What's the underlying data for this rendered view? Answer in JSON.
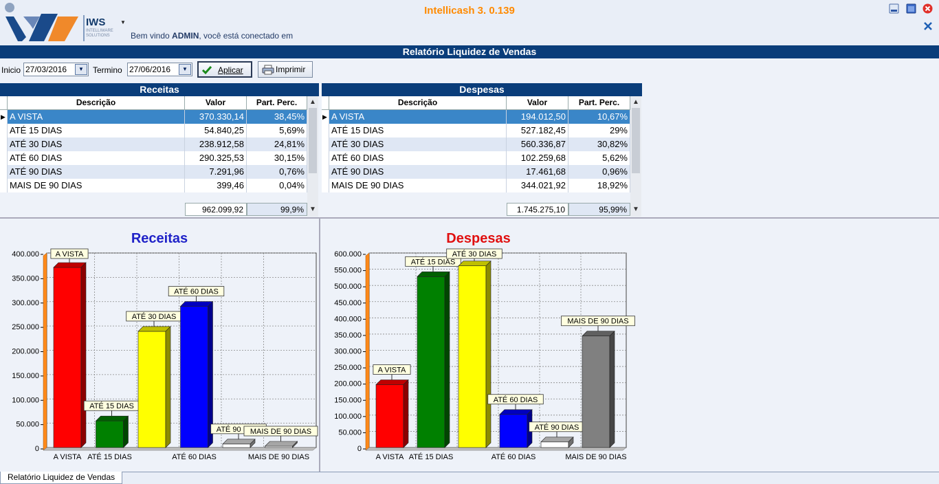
{
  "app": {
    "title": "Intellicash 3. 0.139",
    "logo_text": "IWS",
    "logo_sub": "INTELLIWARE SOLUTIONS",
    "welcome_prefix": "Bem vindo ",
    "welcome_user": "ADMIN",
    "welcome_suffix": ", você está conectado em"
  },
  "report": {
    "title": "Relatório Liquidez de Vendas"
  },
  "filter": {
    "inicio_label": "Inicio",
    "inicio_value": "27/03/2016",
    "termino_label": "Termino",
    "termino_value": "27/06/2016",
    "apply_label": "Aplicar",
    "print_label": "Imprimir"
  },
  "columns": {
    "descricao": "Descrição",
    "valor": "Valor",
    "part": "Part. Perc."
  },
  "receitas": {
    "title": "Receitas",
    "rows": [
      {
        "desc": "A VISTA",
        "valor": "370.330,14",
        "part": "38,45%"
      },
      {
        "desc": "ATÉ 15 DIAS",
        "valor": "54.840,25",
        "part": "5,69%"
      },
      {
        "desc": "ATÉ 30 DIAS",
        "valor": "238.912,58",
        "part": "24,81%"
      },
      {
        "desc": "ATÉ 60 DIAS",
        "valor": "290.325,53",
        "part": "30,15%"
      },
      {
        "desc": "ATÉ 90 DIAS",
        "valor": "7.291,96",
        "part": "0,76%"
      },
      {
        "desc": "MAIS DE 90 DIAS",
        "valor": "399,46",
        "part": "0,04%"
      }
    ],
    "total_valor": "962.099,92",
    "total_part": "99,9%"
  },
  "despesas": {
    "title": "Despesas",
    "rows": [
      {
        "desc": "A VISTA",
        "valor": "194.012,50",
        "part": "10,67%"
      },
      {
        "desc": "ATÉ 15 DIAS",
        "valor": "527.182,45",
        "part": "29%"
      },
      {
        "desc": "ATÉ 30 DIAS",
        "valor": "560.336,87",
        "part": "30,82%"
      },
      {
        "desc": "ATÉ 60 DIAS",
        "valor": "102.259,68",
        "part": "5,62%"
      },
      {
        "desc": "ATÉ 90 DIAS",
        "valor": "17.461,68",
        "part": "0,96%"
      },
      {
        "desc": "MAIS DE 90 DIAS",
        "valor": "344.021,92",
        "part": "18,92%"
      }
    ],
    "total_valor": "1.745.275,10",
    "total_part": "95,99%"
  },
  "chart_data": [
    {
      "type": "bar",
      "title": "Receitas",
      "title_color": "#1f22c8",
      "categories": [
        "A VISTA",
        "ATÉ 15 DIAS",
        "ATÉ 30 DIAS",
        "ATÉ 60 DIAS",
        "ATÉ 90 DIAS",
        "MAIS DE 90 DIAS"
      ],
      "x_tick_labels": [
        "A VISTA",
        "ATÉ 15 DIAS",
        "",
        "ATÉ 60 DIAS",
        "",
        "MAIS DE 90 DIAS"
      ],
      "values": [
        370330.14,
        54840.25,
        238912.58,
        290325.53,
        7291.96,
        399.46
      ],
      "colors": [
        "#ff0000",
        "#008000",
        "#ffff00",
        "#0000ff",
        "#ffffff",
        "#ffffff"
      ],
      "ylim": [
        0,
        400000
      ],
      "yticks": [
        0,
        50000,
        100000,
        150000,
        200000,
        250000,
        300000,
        350000,
        400000
      ],
      "ytick_labels": [
        "0",
        "50.000",
        "100.000",
        "150.000",
        "200.000",
        "250.000",
        "300.000",
        "350.000",
        "400.000"
      ],
      "grid": true,
      "xlabel": "",
      "ylabel": ""
    },
    {
      "type": "bar",
      "title": "Despesas",
      "title_color": "#e01010",
      "categories": [
        "A VISTA",
        "ATÉ 15 DIAS",
        "ATÉ 30 DIAS",
        "ATÉ 60 DIAS",
        "ATÉ 90 DIAS",
        "MAIS DE 90 DIAS"
      ],
      "x_tick_labels": [
        "A VISTA",
        "ATÉ 15 DIAS",
        "",
        "ATÉ 60 DIAS",
        "",
        "MAIS DE 90 DIAS"
      ],
      "values": [
        194012.5,
        527182.45,
        560336.87,
        102259.68,
        17461.68,
        344021.92
      ],
      "colors": [
        "#ff0000",
        "#008000",
        "#ffff00",
        "#0000ff",
        "#ffffff",
        "#808080"
      ],
      "ylim": [
        0,
        600000
      ],
      "yticks": [
        0,
        50000,
        100000,
        150000,
        200000,
        250000,
        300000,
        350000,
        400000,
        450000,
        500000,
        550000,
        600000
      ],
      "ytick_labels": [
        "0",
        "50.000",
        "100.000",
        "150.000",
        "200.000",
        "250.000",
        "300.000",
        "350.000",
        "400.000",
        "450.000",
        "500.000",
        "550.000",
        "600.000"
      ],
      "grid": true,
      "xlabel": "",
      "ylabel": ""
    }
  ],
  "status": {
    "tab_label": "Relatório Liquidez de Vendas"
  }
}
